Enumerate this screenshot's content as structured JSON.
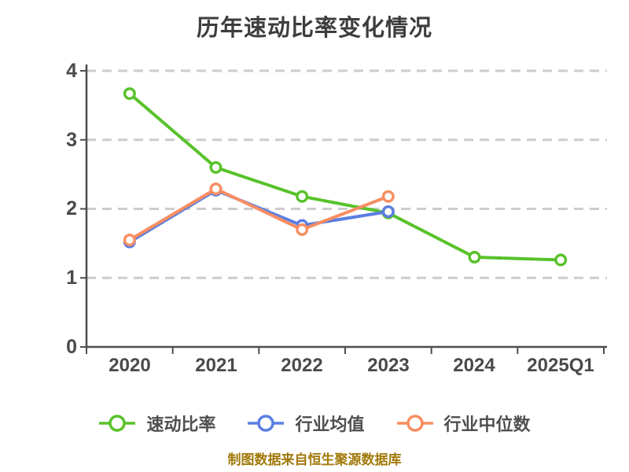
{
  "page": {
    "title": "历年速动比率变化情况",
    "caption": "制图数据来自恒生聚源数据库"
  },
  "colors": {
    "quick_ratio": "#58c22a",
    "industry_avg": "#5a7ee3",
    "industry_median": "#f88e62",
    "line_underlay": "#151515",
    "grid": "#cccccc",
    "axis": "#4d4d4d",
    "title_text": "#3d3d3d",
    "tick_text": "#4a4a4a",
    "caption_text": "#a1790a",
    "marker_fill": "#ffffff",
    "background": "#ffffff"
  },
  "chart_data": {
    "type": "line",
    "title": "历年速动比率变化情况",
    "categories": [
      "2020",
      "2021",
      "2022",
      "2023",
      "2024",
      "2025Q1"
    ],
    "series": [
      {
        "name": "速动比率",
        "color": "#58c22a",
        "values": [
          3.67,
          2.6,
          2.18,
          1.94,
          1.3,
          1.26
        ]
      },
      {
        "name": "行业均值",
        "color": "#5a7ee3",
        "values": [
          1.52,
          2.27,
          1.76,
          1.96,
          null,
          null
        ]
      },
      {
        "name": "行业中位数",
        "color": "#f88e62",
        "values": [
          1.55,
          2.29,
          1.7,
          2.18,
          null,
          null
        ]
      }
    ],
    "xlabel": "",
    "ylabel": "",
    "ylim": [
      0,
      4
    ],
    "yticks": [
      4,
      3,
      2,
      1,
      0
    ],
    "grid": "horizontal-dashed",
    "legend_position": "bottom",
    "marker": "open-circle"
  }
}
